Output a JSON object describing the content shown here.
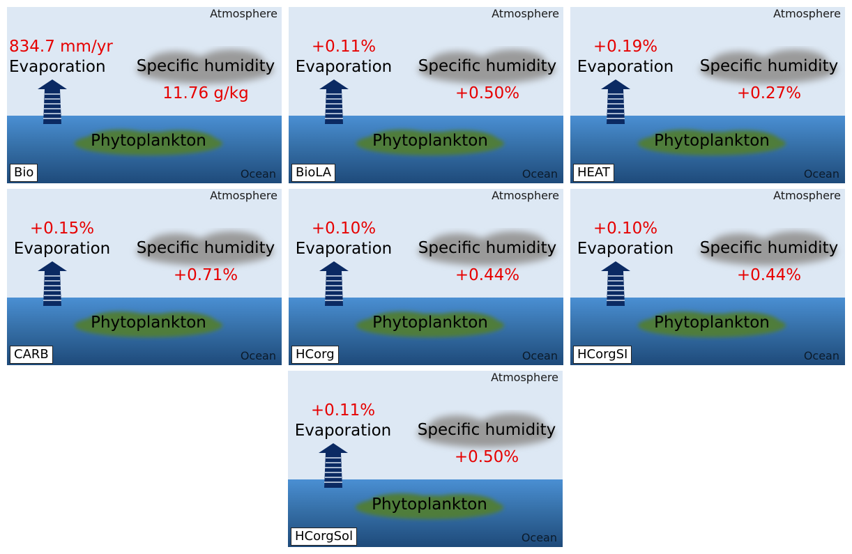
{
  "labels": {
    "atmosphere": "Atmosphere",
    "ocean": "Ocean",
    "evaporation": "Evaporation",
    "specific_humidity": "Specific humidity",
    "phytoplankton": "Phytoplankton"
  },
  "colors": {
    "sky": "#dde8f4",
    "ocean_top": "#4a8fd3",
    "ocean_bottom": "#1e4a7a",
    "arrow": "#0b2a63",
    "cloud": "#9a9a9a",
    "phytoplankton": "#4f7d3a",
    "value_text": "#e60000"
  },
  "panels": [
    {
      "name": "Bio",
      "evaporation": "834.7 mm/yr",
      "humidity": "11.76 g/kg"
    },
    {
      "name": "BioLA",
      "evaporation": "+0.11%",
      "humidity": "+0.50%"
    },
    {
      "name": "HEAT",
      "evaporation": "+0.19%",
      "humidity": "+0.27%"
    },
    {
      "name": "CARB",
      "evaporation": "+0.15%",
      "humidity": "+0.71%"
    },
    {
      "name": "HCorg",
      "evaporation": "+0.10%",
      "humidity": "+0.44%"
    },
    {
      "name": "HCorgSI",
      "evaporation": "+0.10%",
      "humidity": "+0.44%"
    },
    {
      "name": "HCorgSol",
      "evaporation": "+0.11%",
      "humidity": "+0.50%"
    }
  ]
}
